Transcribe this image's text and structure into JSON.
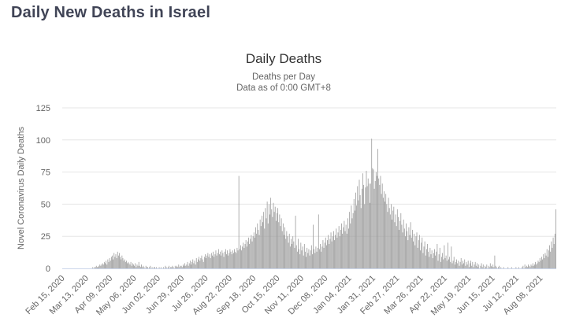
{
  "page": {
    "title": "Daily New Deaths in Israel"
  },
  "chart": {
    "title": "Daily Deaths",
    "subtitle1": "Deaths per Day",
    "subtitle2": "Data as of 0:00 GMT+8"
  },
  "colors": {
    "page_title": "#404456",
    "chart_title": "#333333",
    "axis_text": "#666666",
    "grid": "#e6e6e6",
    "axis_line": "#ccd6eb",
    "bar": "#9c9c9c",
    "background": "#ffffff"
  },
  "chart_data": {
    "type": "bar",
    "title": "Daily Deaths",
    "subtitle": [
      "Deaths per Day",
      "Data as of 0:00 GMT+8"
    ],
    "ylabel": "Novel Coronavirus Daily Deaths",
    "ylim": [
      0,
      125
    ],
    "yticks": [
      0,
      25,
      50,
      75,
      100,
      125
    ],
    "grid": true,
    "legend": false,
    "x_start": "Feb 15, 2020",
    "x_tick_interval_days": 27,
    "x_tick_labels": [
      "Feb 15, 2020",
      "Mar 13, 2020",
      "Apr 09, 2020",
      "May 06, 2020",
      "Jun 02, 2020",
      "Jun 29, 2020",
      "Jul 26, 2020",
      "Aug 22, 2020",
      "Sep 18, 2020",
      "Oct 15, 2020",
      "Nov 11, 2020",
      "Dec 08, 2020",
      "Jan 04, 2021",
      "Jan 31, 2021",
      "Feb 27, 2021",
      "Mar 26, 2021",
      "Apr 22, 2021",
      "May 19, 2021",
      "Jun 15, 2021",
      "Jul 12, 2021",
      "Aug 08, 2021"
    ],
    "values": [
      0,
      0,
      0,
      0,
      0,
      0,
      0,
      0,
      0,
      0,
      0,
      0,
      0,
      0,
      0,
      0,
      0,
      0,
      0,
      0,
      0,
      0,
      0,
      0,
      0,
      0,
      0,
      0,
      0,
      0,
      0,
      0,
      0,
      0,
      1,
      0,
      1,
      1,
      2,
      1,
      1,
      2,
      3,
      2,
      3,
      4,
      3,
      5,
      4,
      6,
      3,
      7,
      5,
      8,
      6,
      9,
      10,
      7,
      12,
      9,
      11,
      8,
      13,
      10,
      12,
      9,
      7,
      10,
      8,
      6,
      7,
      5,
      6,
      4,
      5,
      4,
      3,
      5,
      2,
      4,
      3,
      2,
      4,
      1,
      3,
      2,
      5,
      2,
      1,
      3,
      1,
      2,
      1,
      0,
      2,
      1,
      1,
      0,
      1,
      2,
      0,
      1,
      0,
      1,
      1,
      0,
      1,
      0,
      0,
      1,
      0,
      1,
      0,
      0,
      1,
      0,
      2,
      1,
      0,
      1,
      2,
      0,
      1,
      1,
      2,
      1,
      0,
      2,
      1,
      2,
      1,
      3,
      1,
      2,
      2,
      1,
      3,
      2,
      4,
      2,
      3,
      5,
      2,
      4,
      6,
      3,
      5,
      7,
      4,
      6,
      3,
      8,
      5,
      7,
      9,
      6,
      8,
      10,
      7,
      5,
      9,
      11,
      8,
      10,
      12,
      9,
      11,
      8,
      12,
      10,
      13,
      9,
      11,
      14,
      10,
      12,
      15,
      11,
      13,
      10,
      14,
      12,
      9,
      13,
      15,
      11,
      14,
      10,
      12,
      15,
      13,
      11,
      14,
      12,
      15,
      13,
      12,
      16,
      14,
      72,
      15,
      18,
      14,
      17,
      20,
      16,
      19,
      22,
      17,
      21,
      24,
      19,
      23,
      26,
      21,
      25,
      28,
      24,
      32,
      27,
      35,
      30,
      26,
      38,
      33,
      41,
      36,
      44,
      31,
      47,
      39,
      52,
      35,
      50,
      42,
      55,
      46,
      40,
      51,
      44,
      48,
      37,
      43,
      47,
      36,
      42,
      33,
      39,
      29,
      35,
      26,
      32,
      23,
      29,
      25,
      20,
      27,
      17,
      23,
      19,
      25,
      21,
      16,
      41,
      18,
      13,
      23,
      15,
      11,
      20,
      14,
      17,
      10,
      19,
      13,
      9,
      16,
      12,
      15,
      10,
      14,
      18,
      11,
      34,
      15,
      12,
      17,
      13,
      16,
      42,
      15,
      19,
      13,
      17,
      22,
      16,
      20,
      24,
      18,
      22,
      26,
      19,
      23,
      28,
      21,
      25,
      29,
      22,
      26,
      31,
      24,
      28,
      33,
      25,
      30,
      35,
      27,
      32,
      37,
      29,
      34,
      27,
      39,
      31,
      44,
      35,
      49,
      39,
      43,
      54,
      45,
      59,
      49,
      64,
      53,
      69,
      57,
      47,
      62,
      74,
      65,
      50,
      63,
      76,
      64,
      70,
      66,
      51,
      66,
      101,
      78,
      77,
      62,
      68,
      75,
      72,
      93,
      70,
      65,
      72,
      58,
      66,
      55,
      60,
      52,
      58,
      50,
      44,
      55,
      47,
      42,
      50,
      38,
      45,
      48,
      36,
      42,
      33,
      46,
      40,
      30,
      37,
      43,
      34,
      28,
      38,
      31,
      25,
      35,
      29,
      22,
      32,
      26,
      36,
      24,
      30,
      21,
      27,
      18,
      25,
      28,
      16,
      22,
      26,
      14,
      20,
      24,
      12,
      17,
      21,
      10,
      15,
      19,
      13,
      9,
      16,
      11,
      14,
      8,
      12,
      15,
      10,
      13,
      19,
      6,
      11,
      16,
      5,
      9,
      12,
      7,
      18,
      8,
      10,
      6,
      20,
      7,
      9,
      5,
      17,
      4,
      6,
      9,
      3,
      5,
      7,
      4,
      6,
      2,
      5,
      8,
      3,
      6,
      4,
      7,
      2,
      5,
      3,
      6,
      1,
      4,
      6,
      2,
      5,
      1,
      3,
      5,
      2,
      4,
      1,
      3,
      0,
      2,
      4,
      1,
      3,
      0,
      2,
      1,
      3,
      0,
      2,
      1,
      4,
      2,
      1,
      3,
      1,
      10,
      2,
      1,
      0,
      1,
      2,
      0,
      1,
      0,
      0,
      1,
      0,
      0,
      0,
      0,
      1,
      0,
      0,
      0,
      1,
      0,
      0,
      0,
      0,
      1,
      0,
      0,
      1,
      0,
      0,
      0,
      1,
      2,
      0,
      3,
      1,
      2,
      1,
      3,
      2,
      1,
      3,
      2,
      4,
      2,
      3,
      5,
      3,
      4,
      6,
      5,
      8,
      6,
      9,
      7,
      11,
      8,
      12,
      10,
      15,
      9,
      14,
      18,
      13,
      21,
      16,
      24,
      19,
      27,
      46
    ]
  }
}
